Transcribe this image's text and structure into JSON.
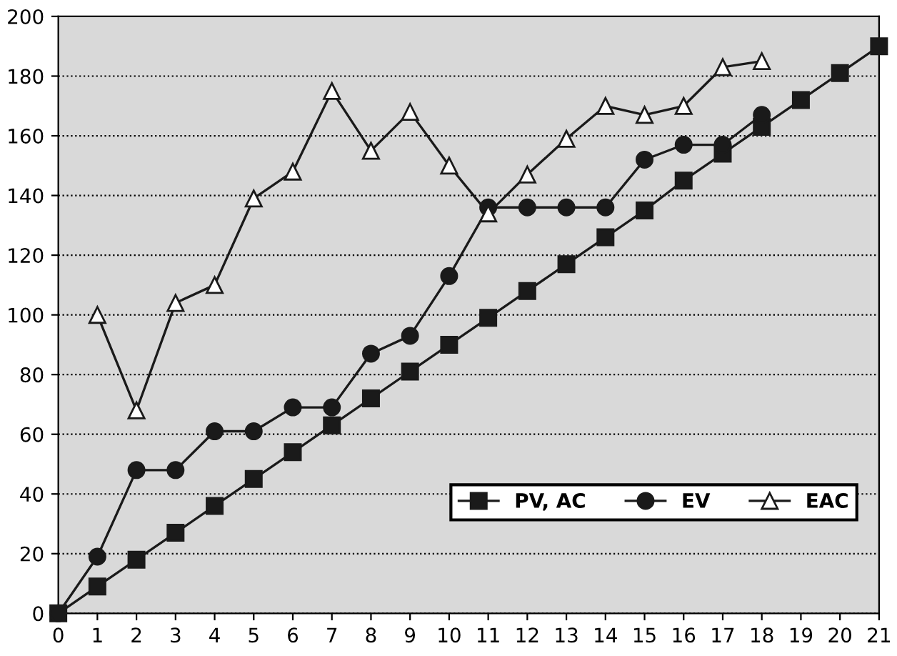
{
  "chart_data": {
    "type": "line",
    "x": [
      0,
      1,
      2,
      3,
      4,
      5,
      6,
      7,
      8,
      9,
      10,
      11,
      12,
      13,
      14,
      15,
      16,
      17,
      18,
      19,
      20,
      21
    ],
    "series": [
      {
        "name": "PV, AC",
        "color": "#1a1a1a",
        "marker": "square",
        "values": [
          0,
          9,
          18,
          27,
          36,
          45,
          54,
          63,
          72,
          81,
          90,
          99,
          108,
          117,
          126,
          135,
          145,
          154,
          163,
          172,
          181,
          190
        ]
      },
      {
        "name": "EV",
        "color": "#1a1a1a",
        "marker": "circle",
        "x": [
          0,
          1,
          2,
          3,
          4,
          5,
          6,
          7,
          8,
          9,
          10,
          11,
          12,
          13,
          14,
          15,
          16,
          17,
          18
        ],
        "values": [
          0,
          19,
          48,
          48,
          61,
          61,
          69,
          69,
          87,
          93,
          113,
          136,
          136,
          136,
          136,
          152,
          157,
          157,
          167
        ]
      },
      {
        "name": "EAC",
        "color": "#1a1a1a",
        "marker": "triangle",
        "x": [
          1,
          2,
          3,
          4,
          5,
          6,
          7,
          8,
          9,
          10,
          11,
          12,
          13,
          14,
          15,
          16,
          17,
          18
        ],
        "values": [
          100,
          68,
          104,
          110,
          139,
          148,
          175,
          155,
          168,
          150,
          134,
          147,
          159,
          170,
          167,
          170,
          183,
          185
        ]
      }
    ],
    "xlim": [
      0,
      21
    ],
    "xticks": [
      0,
      1,
      2,
      3,
      4,
      5,
      6,
      7,
      8,
      9,
      10,
      11,
      12,
      13,
      14,
      15,
      16,
      17,
      18,
      19,
      20,
      21
    ],
    "ylim": [
      0,
      200
    ],
    "yticks": [
      0,
      20,
      40,
      60,
      80,
      100,
      120,
      140,
      160,
      180,
      200
    ],
    "grid": "y",
    "legend": "bottom right",
    "line_style": "solid"
  }
}
